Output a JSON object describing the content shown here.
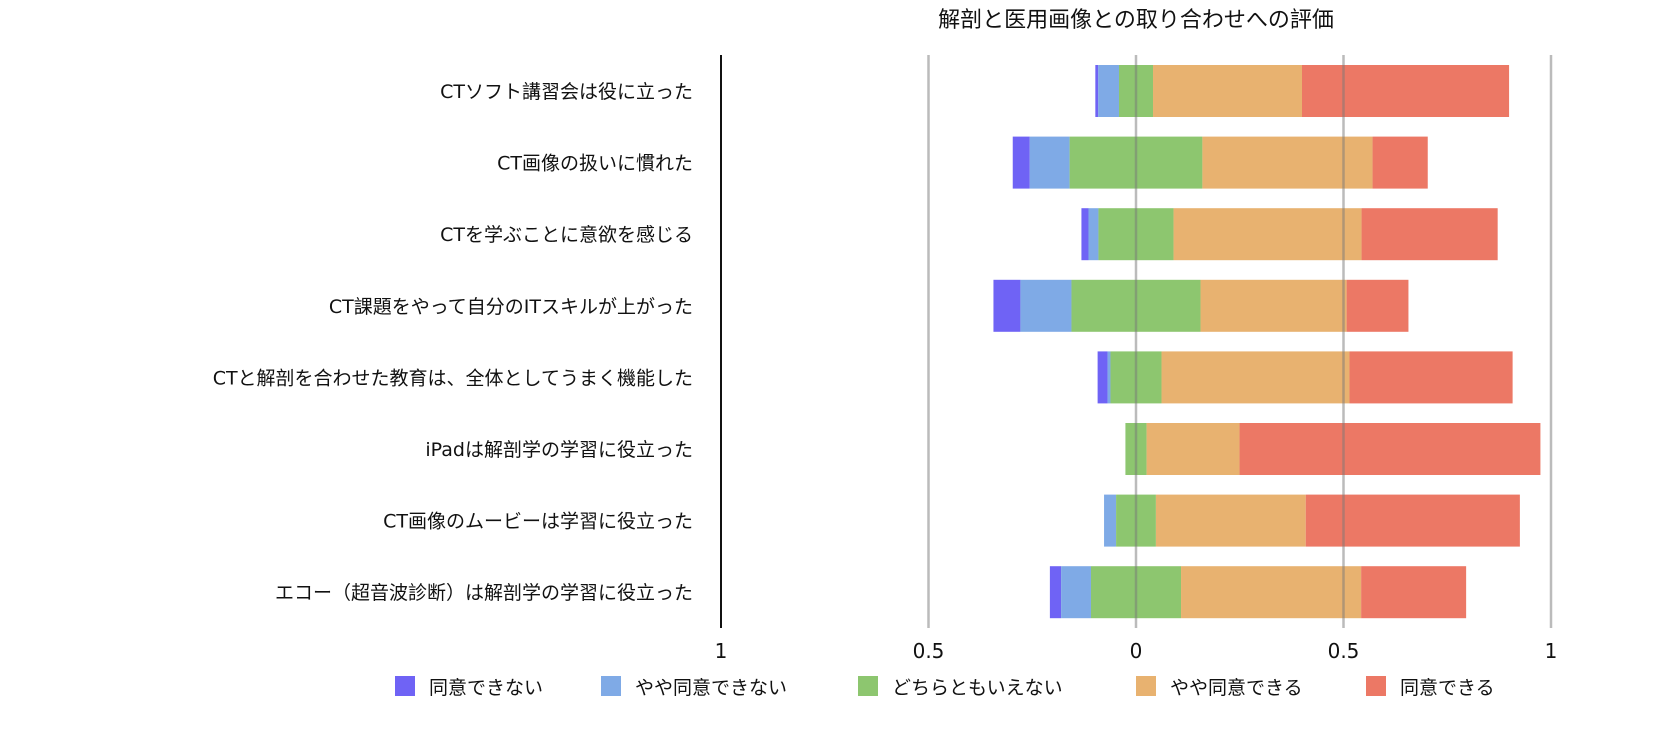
{
  "chart_data": {
    "type": "bar",
    "subtype": "diverging-stacked-horizontal",
    "title": "解剖と医用画像との取り合わせへの評価",
    "xlim": [
      -1,
      1
    ],
    "xticks": [
      -1,
      -0.5,
      0,
      0.5,
      1
    ],
    "xtick_labels": [
      "1",
      "0.5",
      "0",
      "0.5",
      "1"
    ],
    "grid": true,
    "legend_position": "bottom",
    "categories": [
      "CTソフト講習会は役に立った",
      "CT画像の扱いに慣れた",
      "CTを学ぶことに意欲を感じる",
      "CT課題をやって自分のITスキルが上がった",
      "CTと解剖を合わせた教育は、全体としてうまく機能した",
      "iPadは解剖学の学習に役立った",
      "CT画像のムービーは学習に役立った",
      "エコー（超音波診断）は解剖学の学習に役立った"
    ],
    "series": [
      {
        "name": "同意できない",
        "color": "#6f63f5",
        "values": [
          0.007,
          0.041,
          0.017,
          0.065,
          0.024,
          0,
          0,
          0.027
        ]
      },
      {
        "name": "やや同意できない",
        "color": "#7faae6",
        "values": [
          0.05,
          0.096,
          0.024,
          0.123,
          0.007,
          0,
          0.029,
          0.072
        ]
      },
      {
        "name": "どちらともいえない",
        "color": "#8dc66f",
        "values": [
          0.082,
          0.32,
          0.181,
          0.311,
          0.123,
          0.051,
          0.096,
          0.217
        ]
      },
      {
        "name": "やや同意できる",
        "color": "#e8b270",
        "values": [
          0.359,
          0.41,
          0.453,
          0.352,
          0.453,
          0.224,
          0.361,
          0.434
        ]
      },
      {
        "name": "同意できる",
        "color": "#ec7865",
        "values": [
          0.499,
          0.133,
          0.328,
          0.149,
          0.393,
          0.725,
          0.516,
          0.253
        ]
      }
    ]
  }
}
